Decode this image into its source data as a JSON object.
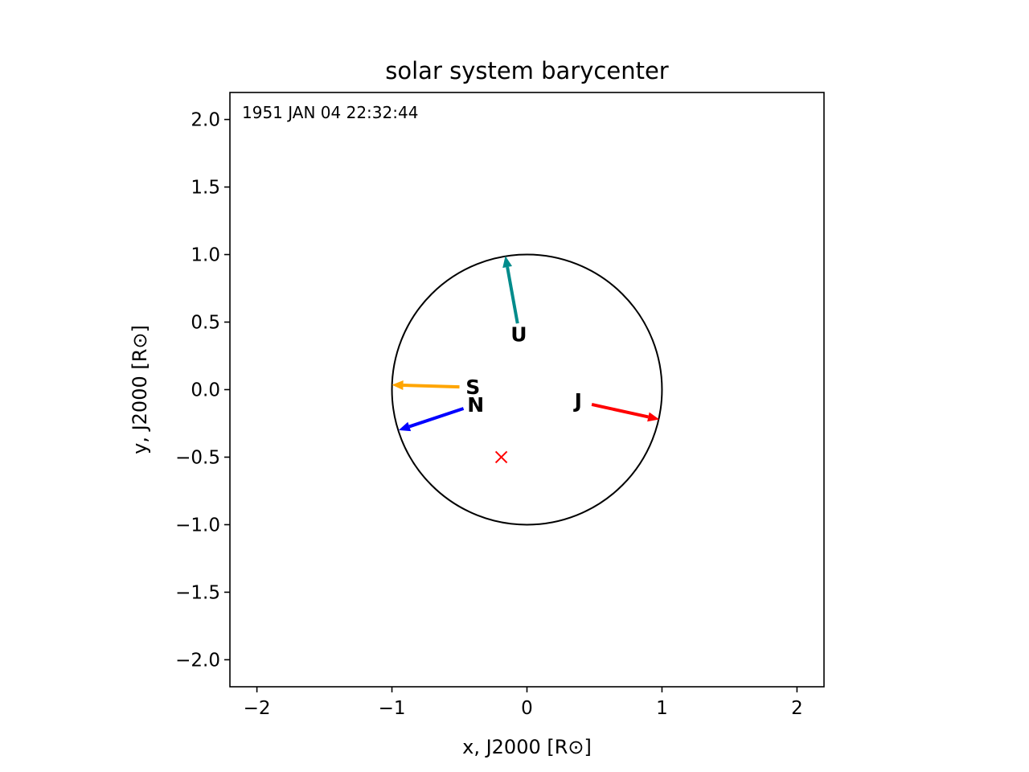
{
  "chart_data": {
    "type": "scatter",
    "title": "solar system barycenter",
    "xlabel": "x, J2000 [R⊙]",
    "ylabel": "y, J2000 [R⊙]",
    "xlim": [
      -2.2,
      2.2
    ],
    "ylim": [
      -2.2,
      2.2
    ],
    "xticks": [
      -2,
      -1,
      0,
      1,
      2
    ],
    "xtick_labels": [
      "−2",
      "−1",
      "0",
      "1",
      "2"
    ],
    "yticks": [
      2.0,
      1.5,
      1.0,
      0.5,
      0.0,
      -0.5,
      -1.0,
      -1.5,
      -2.0
    ],
    "ytick_labels": [
      "2.0",
      "1.5",
      "1.0",
      "0.5",
      "0.0",
      "−0.5",
      "−1.0",
      "−1.5",
      "−2.0"
    ],
    "grid": false,
    "annotation": "1951 JAN 04 22:32:44",
    "sun_circle": {
      "center": [
        0,
        0
      ],
      "radius": 1.0,
      "color": "#000000"
    },
    "barycenter": {
      "x": -0.19,
      "y": -0.5,
      "marker": "x",
      "color": "#ff0000"
    },
    "arrows": [
      {
        "label": "J",
        "x0": 0.48,
        "y0": -0.11,
        "x1": 0.98,
        "y1": -0.22,
        "color": "#ff0000"
      },
      {
        "label": "S",
        "x0": -0.5,
        "y0": 0.02,
        "x1": -1.0,
        "y1": 0.035,
        "color": "#ffa500"
      },
      {
        "label": "U",
        "x0": -0.07,
        "y0": 0.49,
        "x1": -0.16,
        "y1": 0.99,
        "color": "#008b8b"
      },
      {
        "label": "N",
        "x0": -0.47,
        "y0": -0.14,
        "x1": -0.95,
        "y1": -0.3,
        "color": "#0000ff"
      }
    ],
    "labels": [
      {
        "text": "J",
        "x": 0.38,
        "y": -0.08
      },
      {
        "text": "S",
        "x": -0.4,
        "y": 0.02
      },
      {
        "text": "U",
        "x": -0.06,
        "y": 0.41
      },
      {
        "text": "N",
        "x": -0.38,
        "y": -0.11
      }
    ]
  }
}
